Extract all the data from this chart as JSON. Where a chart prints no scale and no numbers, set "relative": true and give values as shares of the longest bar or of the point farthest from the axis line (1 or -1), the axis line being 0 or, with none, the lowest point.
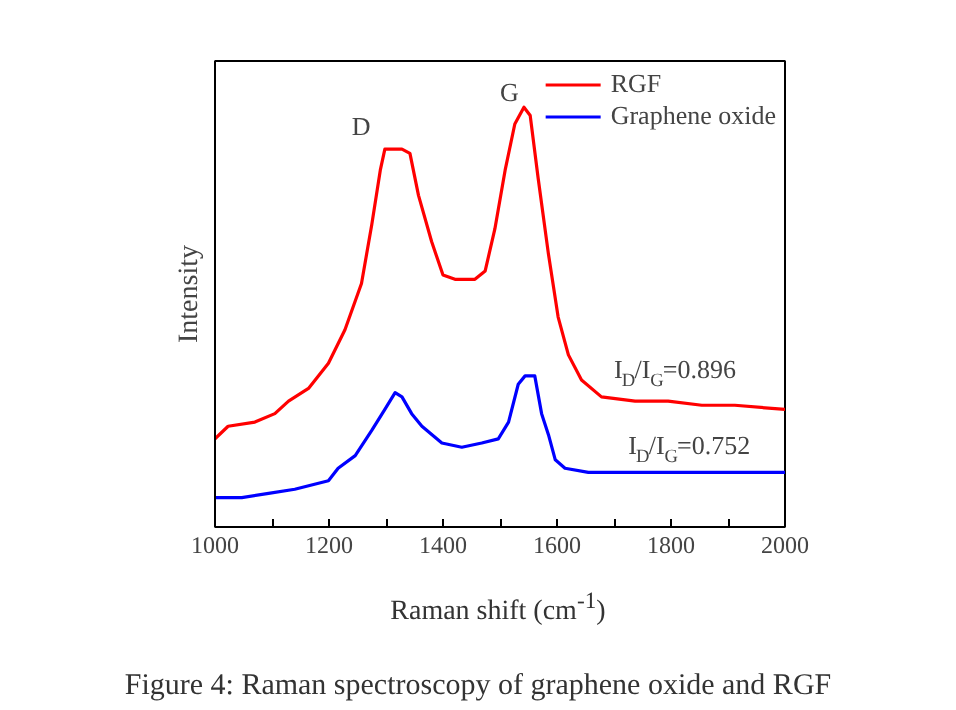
{
  "chart_data": {
    "type": "line",
    "relative": true,
    "xlabel": "Raman shift (cm$^{-1}$)",
    "ylabel": "Intensity",
    "xlim": [
      1000,
      2000
    ],
    "xticks": [
      1000,
      {
        "value": 1100,
        "label": null
      },
      1200,
      {
        "value": 1300,
        "label": null
      },
      1400,
      {
        "value": 1500,
        "label": null
      },
      1600,
      {
        "value": 1700,
        "label": null
      },
      1800,
      {
        "value": 1900,
        "label": null
      },
      2000
    ],
    "grid": false,
    "legend": "top right",
    "marker": "none",
    "line_style": "solid",
    "series": [
      {
        "name": "RGF",
        "color": "#ff0000",
        "x": [
          1000,
          1023,
          1070,
          1105,
          1129,
          1164,
          1199,
          1228,
          1257,
          1275,
          1290,
          1298,
          1328,
          1342,
          1357,
          1380,
          1400,
          1421,
          1456,
          1474,
          1491,
          1509,
          1526,
          1542,
          1553,
          1567,
          1585,
          1602,
          1620,
          1643,
          1678,
          1737,
          1795,
          1854,
          1912,
          2000
        ],
        "values": [
          0.21,
          0.24,
          0.25,
          0.27,
          0.3,
          0.33,
          0.39,
          0.47,
          0.58,
          0.72,
          0.85,
          0.9,
          0.9,
          0.89,
          0.79,
          0.68,
          0.6,
          0.59,
          0.59,
          0.61,
          0.71,
          0.85,
          0.96,
          1.0,
          0.98,
          0.83,
          0.65,
          0.5,
          0.41,
          0.35,
          0.31,
          0.3,
          0.3,
          0.29,
          0.29,
          0.28
        ]
      },
      {
        "name": "Graphene oxide",
        "color": "#0000ff",
        "x": [
          1000,
          1047,
          1094,
          1140,
          1199,
          1216,
          1246,
          1275,
          1298,
          1316,
          1328,
          1345,
          1363,
          1398,
          1433,
          1468,
          1497,
          1515,
          1532,
          1544,
          1561,
          1573,
          1585,
          1597,
          1614,
          1655,
          1737,
          1854,
          2000
        ],
        "values": [
          0.07,
          0.07,
          0.08,
          0.09,
          0.11,
          0.14,
          0.17,
          0.23,
          0.28,
          0.32,
          0.31,
          0.27,
          0.24,
          0.2,
          0.19,
          0.2,
          0.21,
          0.25,
          0.34,
          0.36,
          0.36,
          0.27,
          0.22,
          0.16,
          0.14,
          0.13,
          0.13,
          0.13,
          0.13
        ]
      }
    ],
    "annotations": [
      "D",
      "G",
      "I$_{D}$/I$_{G}$=0.896",
      "I$_{D}$/I$_{G}$=0.752",
      "Figure 4: Raman spectroscopy of graphene oxide and RGF"
    ]
  }
}
